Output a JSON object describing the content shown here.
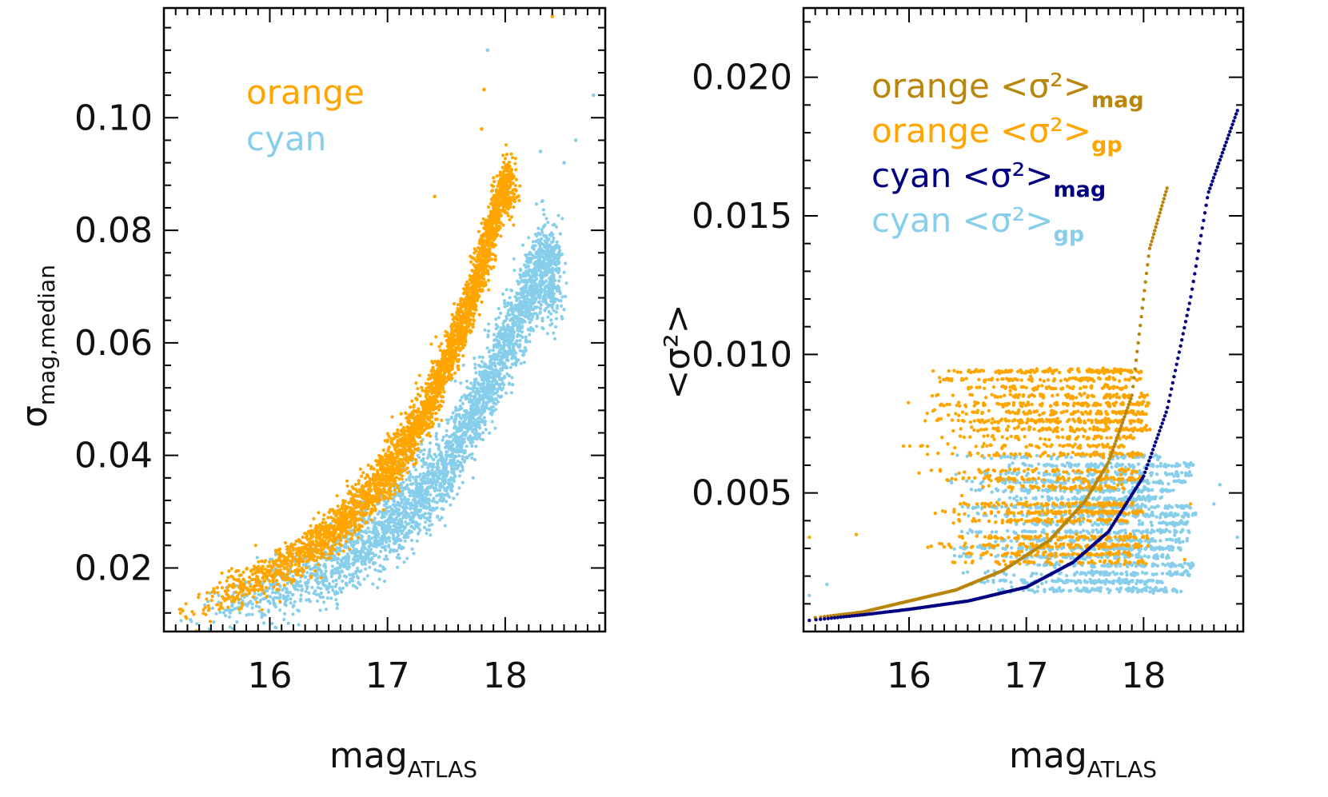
{
  "colors": {
    "orange": "#FFA500",
    "cyan": "#87CEEB",
    "orange_mag_line": "#B8860B",
    "cyan_mag_line": "#000080",
    "axis": "#000000"
  },
  "chart_data": [
    {
      "type": "scatter",
      "title": "",
      "xlabel": "mag",
      "xlabel_sub": "ATLAS",
      "ylabel": "σ",
      "ylabel_sub": "mag,median",
      "xlim": [
        15.1,
        18.85
      ],
      "ylim": [
        0.0087,
        0.1195
      ],
      "x_ticks": [
        16,
        17,
        18
      ],
      "x_tick_labels": [
        "16",
        "17",
        "18"
      ],
      "y_ticks": [
        0.02,
        0.04,
        0.06,
        0.08,
        0.1
      ],
      "y_tick_labels": [
        "0.02",
        "0.04",
        "0.06",
        "0.08",
        "0.10"
      ],
      "grid": false,
      "legend_position": "top-left",
      "legend": [
        {
          "label": "orange",
          "color": "#FFA500"
        },
        {
          "label": "cyan",
          "color": "#87CEEB"
        }
      ],
      "series": [
        {
          "name": "orange",
          "color": "#FFA500",
          "trend": {
            "x": [
              15.2,
              15.6,
              16.0,
              16.4,
              16.8,
              17.1,
              17.3,
              17.5,
              17.7,
              17.85,
              18.0
            ],
            "y": [
              0.011,
              0.015,
              0.019,
              0.024,
              0.032,
              0.04,
              0.047,
              0.056,
              0.067,
              0.078,
              0.088
            ]
          },
          "scatter_sigma": 0.0025,
          "x_density_range": [
            15.2,
            18.05
          ],
          "outliers": [
            [
              18.4,
              0.118
            ],
            [
              17.82,
              0.105
            ],
            [
              17.8,
              0.098
            ],
            [
              17.4,
              0.086
            ]
          ]
        },
        {
          "name": "cyan",
          "color": "#87CEEB",
          "trend": {
            "x": [
              15.3,
              15.7,
              16.1,
              16.5,
              16.9,
              17.2,
              17.5,
              17.7,
              17.9,
              18.1,
              18.3
            ],
            "y": [
              0.01,
              0.013,
              0.016,
              0.02,
              0.025,
              0.031,
              0.038,
              0.046,
              0.055,
              0.064,
              0.073
            ]
          },
          "scatter_sigma": 0.0035,
          "x_density_range": [
            15.3,
            18.45
          ],
          "outliers": [
            [
              17.85,
              0.112
            ],
            [
              18.75,
              0.104
            ],
            [
              18.6,
              0.096
            ],
            [
              18.5,
              0.092
            ],
            [
              18.3,
              0.094
            ]
          ]
        }
      ]
    },
    {
      "type": "scatter",
      "title": "",
      "xlabel": "mag",
      "xlabel_sub": "ATLAS",
      "ylabel": "<σ²>",
      "xlim": [
        15.1,
        18.85
      ],
      "ylim": [
        0.0,
        0.0225
      ],
      "x_ticks": [
        16,
        17,
        18
      ],
      "x_tick_labels": [
        "16",
        "17",
        "18"
      ],
      "y_ticks": [
        0.005,
        0.01,
        0.015,
        0.02
      ],
      "y_tick_labels": [
        "0.005",
        "0.010",
        "0.015",
        "0.020"
      ],
      "grid": false,
      "legend_position": "top-left",
      "legend": [
        {
          "label": "orange",
          "symbol": "<σ²>",
          "sub": "mag",
          "color": "#B8860B"
        },
        {
          "label": "orange",
          "symbol": "<σ²>",
          "sub": "gp",
          "color": "#FFA500"
        },
        {
          "label": "cyan",
          "symbol": "<σ²>",
          "sub": "mag",
          "color": "#000080"
        },
        {
          "label": "cyan",
          "symbol": "<σ²>",
          "sub": "gp",
          "color": "#87CEEB"
        }
      ],
      "series": [
        {
          "name": "orange <σ²>mag",
          "color": "#B8860B",
          "curve": {
            "x": [
              15.2,
              15.6,
              16.0,
              16.4,
              16.8,
              17.2,
              17.5,
              17.7,
              17.9,
              18.05,
              18.2
            ],
            "y": [
              0.0005,
              0.0007,
              0.0011,
              0.0015,
              0.0022,
              0.0033,
              0.0047,
              0.0061,
              0.0085,
              0.0138,
              0.016
            ]
          }
        },
        {
          "name": "cyan <σ²>mag",
          "color": "#000080",
          "curve": {
            "x": [
              15.15,
              15.6,
              16.0,
              16.5,
              17.0,
              17.4,
              17.7,
              18.0,
              18.2,
              18.4,
              18.55,
              18.8
            ],
            "y": [
              0.0004,
              0.0006,
              0.0008,
              0.0011,
              0.0016,
              0.0025,
              0.0036,
              0.0056,
              0.008,
              0.012,
              0.0158,
              0.0188
            ]
          }
        },
        {
          "name": "orange <σ²>gp",
          "color": "#FFA500",
          "bands_y": [
            0.0025,
            0.0028,
            0.0031,
            0.0034,
            0.004,
            0.0043,
            0.0046,
            0.0052,
            0.0055,
            0.0058,
            0.0064,
            0.0067,
            0.007,
            0.0073,
            0.0076,
            0.0079,
            0.0082,
            0.0085,
            0.0088,
            0.0091,
            0.0094
          ],
          "bands_x_range": [
            15.9,
            18.1
          ],
          "outliers": [
            [
              15.15,
              0.0034
            ],
            [
              15.55,
              0.0035
            ],
            [
              16.45,
              0.0049
            ],
            [
              16.9,
              0.0058
            ],
            [
              18.35,
              0.0026
            ],
            [
              18.4,
              0.0046
            ],
            [
              18.0,
              0.0083
            ]
          ]
        },
        {
          "name": "cyan <σ²>gp",
          "color": "#87CEEB",
          "bands_y": [
            0.0015,
            0.0018,
            0.0021,
            0.0024,
            0.0027,
            0.003,
            0.0033,
            0.0036,
            0.0039,
            0.0042,
            0.0045,
            0.0048,
            0.0051,
            0.0054,
            0.0057,
            0.006,
            0.0063
          ],
          "bands_x_range": [
            16.2,
            18.45
          ],
          "outliers": [
            [
              15.15,
              0.0013
            ],
            [
              15.3,
              0.0017
            ],
            [
              18.6,
              0.0046
            ],
            [
              18.65,
              0.0053
            ],
            [
              18.8,
              0.0034
            ]
          ]
        }
      ]
    }
  ]
}
